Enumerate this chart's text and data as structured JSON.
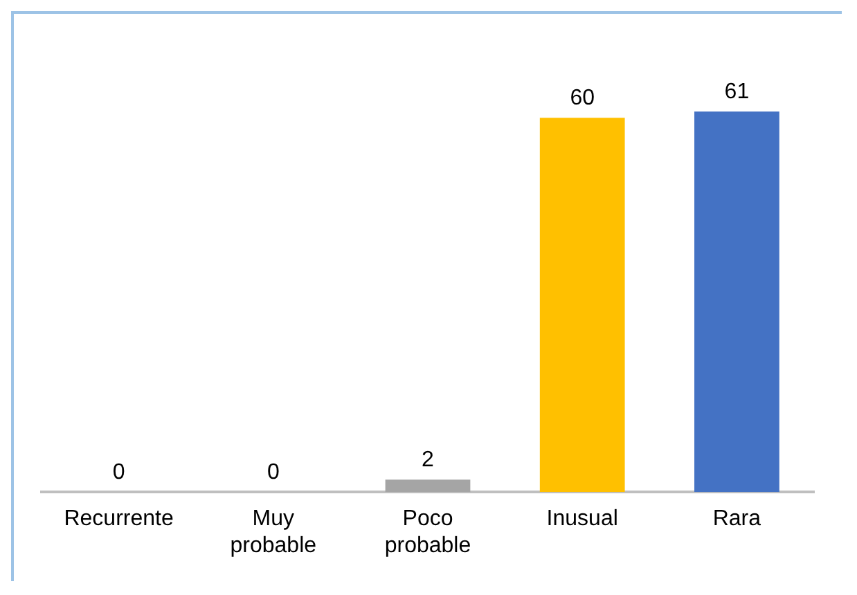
{
  "chart_data": {
    "type": "bar",
    "categories": [
      "Recurrente",
      "Muy probable",
      "Poco probable",
      "Inusual",
      "Rara"
    ],
    "values": [
      0,
      0,
      2,
      60,
      61
    ],
    "colors": [
      "#a5a5a5",
      "#a5a5a5",
      "#a5a5a5",
      "#ffc000",
      "#4472c4"
    ],
    "data_labels": true,
    "grid": false,
    "legend": false
  }
}
